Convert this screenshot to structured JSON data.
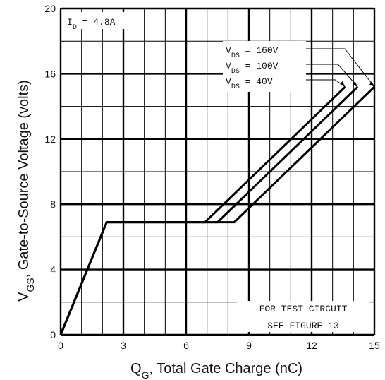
{
  "chart_data": {
    "type": "line",
    "title": "",
    "xlabel": "Q",
    "xlabel_sub": "G",
    "xlabel_rest": ", Total Gate Charge (nC)",
    "ylabel": "V",
    "ylabel_sub": "GS",
    "ylabel_rest": ", Gate-to-Source Voltage (volts)",
    "xlim": [
      0,
      15
    ],
    "ylim": [
      0,
      20
    ],
    "xticks": [
      0,
      3,
      6,
      9,
      12,
      15
    ],
    "yticks": [
      0,
      4,
      8,
      12,
      16,
      20
    ],
    "grid": true,
    "condition": {
      "main": "I",
      "sub": "D",
      "rest": " = 4.8A"
    },
    "note": [
      "FOR TEST CIRCUIT",
      "SEE FIGURE 13"
    ],
    "series": [
      {
        "name": "VDS = 160V",
        "label_main": "V",
        "label_sub": "DS",
        "label_rest": " = 160V",
        "x": [
          0,
          2.2,
          8.3,
          15.0
        ],
        "y": [
          0,
          6.9,
          6.9,
          15.2
        ]
      },
      {
        "name": "VDS = 100V",
        "label_main": "V",
        "label_sub": "DS",
        "label_rest": " = 100V",
        "x": [
          0,
          2.2,
          7.5,
          14.2
        ],
        "y": [
          0,
          6.9,
          6.9,
          15.2
        ]
      },
      {
        "name": "VDS = 40V",
        "label_main": "V",
        "label_sub": "DS",
        "label_rest": " =  40V",
        "x": [
          0,
          2.2,
          6.9,
          13.6
        ],
        "y": [
          0,
          6.9,
          6.9,
          15.2
        ]
      }
    ]
  }
}
